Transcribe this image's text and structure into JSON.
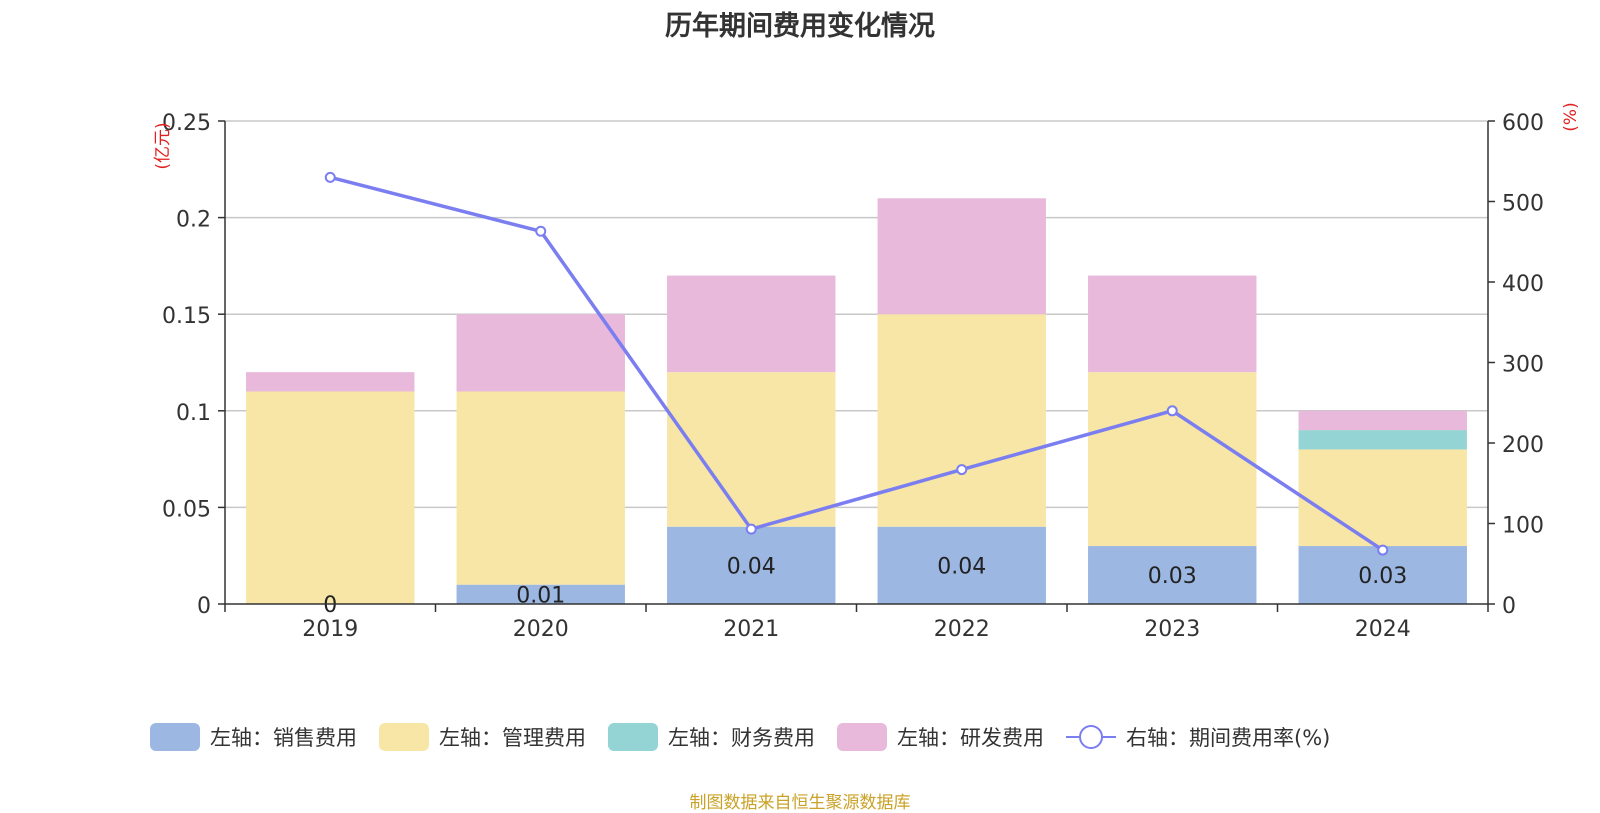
{
  "title": "历年期间费用变化情况",
  "source": "制图数据来自恒生聚源数据库",
  "colors": {
    "sales": "#9bb7e2",
    "admin": "#f7e6a6",
    "finance": "#95d4d4",
    "rd": "#e8b9da",
    "line": "#7b7ef0"
  },
  "chart_data": {
    "type": "bar",
    "stacked": true,
    "categories": [
      "2019",
      "2020",
      "2021",
      "2022",
      "2023",
      "2024"
    ],
    "y_left": {
      "label": "(亿元)",
      "ylim": [
        0,
        0.25
      ],
      "ticks": [
        "0",
        "0.05",
        "0.1",
        "0.15",
        "0.2",
        "0.25"
      ]
    },
    "y_right": {
      "label": "(%)",
      "ylim": [
        0,
        600
      ],
      "ticks": [
        "0",
        "100",
        "200",
        "300",
        "400",
        "500",
        "600"
      ]
    },
    "series": [
      {
        "name": "左轴：销售费用",
        "axis": "left",
        "values": [
          0,
          0.01,
          0.04,
          0.04,
          0.03,
          0.03
        ],
        "labels": [
          "0",
          "0.01",
          "0.04",
          "0.04",
          "0.03",
          "0.03"
        ]
      },
      {
        "name": "左轴：管理费用",
        "axis": "left",
        "values": [
          0.11,
          0.1,
          0.08,
          0.11,
          0.09,
          0.05
        ]
      },
      {
        "name": "左轴：财务费用",
        "axis": "left",
        "values": [
          0,
          0,
          0,
          0,
          0,
          0.01
        ]
      },
      {
        "name": "左轴：研发费用",
        "axis": "left",
        "values": [
          0.01,
          0.04,
          0.05,
          0.06,
          0.05,
          0.01
        ]
      },
      {
        "name": "右轴：期间费用率(%)",
        "axis": "right",
        "type": "line",
        "values": [
          530,
          463,
          93,
          167,
          240,
          67
        ]
      }
    ],
    "grid": true,
    "legend_position": "bottom"
  }
}
